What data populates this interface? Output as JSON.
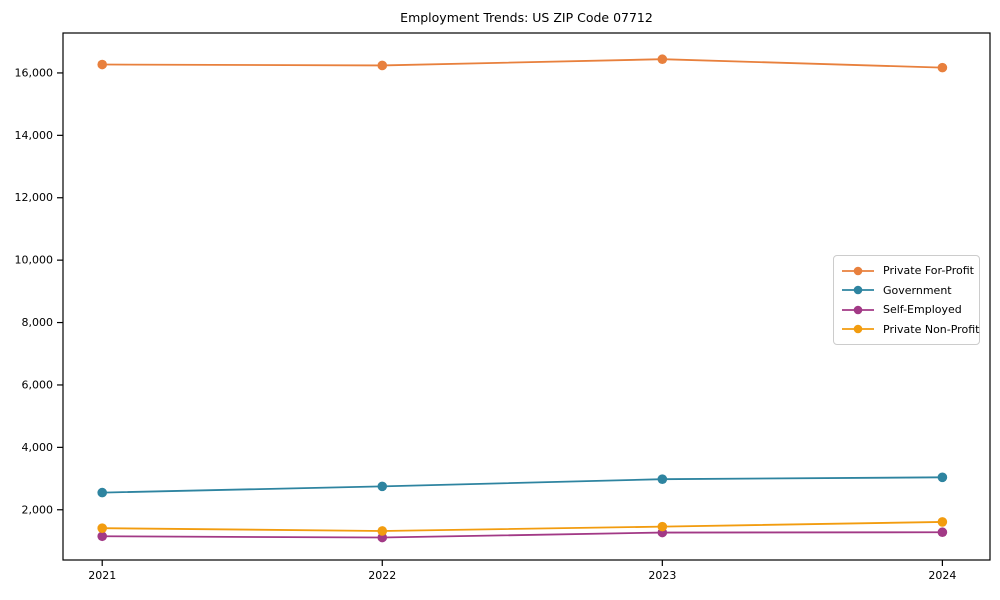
{
  "chart_data": {
    "type": "line",
    "title": "Employment Trends: US ZIP Code 07712",
    "xlabel": "",
    "ylabel": "",
    "x": [
      2021,
      2022,
      2023,
      2024
    ],
    "x_tick_labels": [
      "2021",
      "2022",
      "2023",
      "2024"
    ],
    "series": [
      {
        "name": "Private For-Profit",
        "color": "#e8803d",
        "values": [
          16270,
          16240,
          16440,
          16170
        ]
      },
      {
        "name": "Government",
        "color": "#2e84a0",
        "values": [
          2550,
          2750,
          2980,
          3040
        ]
      },
      {
        "name": "Self-Employed",
        "color": "#a23986",
        "values": [
          1150,
          1110,
          1270,
          1280
        ]
      },
      {
        "name": "Private Non-Profit",
        "color": "#f29c0f",
        "values": [
          1410,
          1320,
          1460,
          1610
        ]
      }
    ],
    "yticks": [
      2000,
      4000,
      6000,
      8000,
      10000,
      12000,
      14000,
      16000
    ],
    "ytick_labels": [
      "2,000",
      "4,000",
      "6,000",
      "8,000",
      "10,000",
      "12,000",
      "14,000",
      "16,000"
    ],
    "ylim": [
      390,
      17280
    ],
    "xlim": [
      2020.86,
      2024.17
    ],
    "grid": false,
    "legend_position": "center-right",
    "marker": "circle",
    "axis_color": "#000000",
    "background_color": "#ffffff"
  }
}
